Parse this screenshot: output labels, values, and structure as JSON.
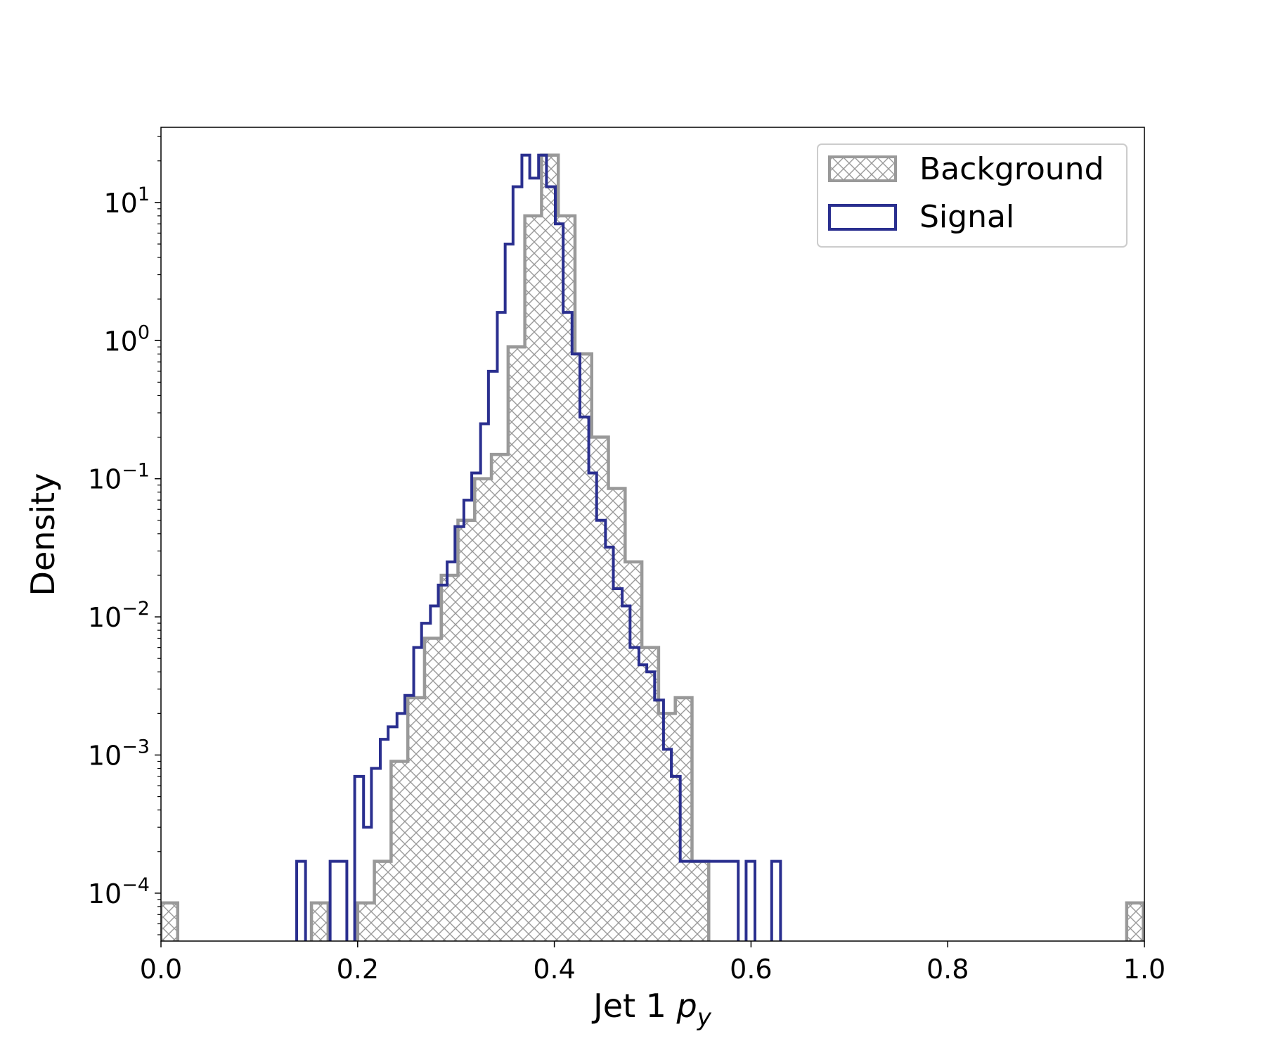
{
  "chart_data": {
    "type": "histogram",
    "xlabel": "Jet 1 ",
    "xlabel_symbol": "p",
    "xlabel_subscript": "y",
    "ylabel": "Density",
    "xlim": [
      0.0,
      1.0
    ],
    "ylim": [
      4.5e-05,
      35
    ],
    "yscale": "log",
    "grid": false,
    "legend_position": "top-right",
    "xticks": [
      {
        "value": 0.0,
        "label": "0.0"
      },
      {
        "value": 0.2,
        "label": "0.2"
      },
      {
        "value": 0.4,
        "label": "0.4"
      },
      {
        "value": 0.6,
        "label": "0.6"
      },
      {
        "value": 0.8,
        "label": "0.8"
      },
      {
        "value": 1.0,
        "label": "1.0"
      }
    ],
    "yticks": [
      {
        "value": 0.0001,
        "base": "10",
        "exp": "−4"
      },
      {
        "value": 0.001,
        "base": "10",
        "exp": "−3"
      },
      {
        "value": 0.01,
        "base": "10",
        "exp": "−2"
      },
      {
        "value": 0.1,
        "base": "10",
        "exp": "−1"
      },
      {
        "value": 1,
        "base": "10",
        "exp": "0"
      },
      {
        "value": 10,
        "base": "10",
        "exp": "1"
      }
    ],
    "bin_width": 0.017,
    "series": [
      {
        "name": "Background",
        "style": "hatched",
        "color": "#999999",
        "x_start": [
          0.0,
          0.153,
          0.2,
          0.217,
          0.234,
          0.251,
          0.268,
          0.285,
          0.302,
          0.319,
          0.336,
          0.353,
          0.37,
          0.387,
          0.404,
          0.421,
          0.438,
          0.455,
          0.472,
          0.489,
          0.506,
          0.523,
          0.54,
          0.982
        ],
        "values": [
          8.5e-05,
          8.5e-05,
          8.5e-05,
          0.00017,
          0.0009,
          0.0026,
          0.007,
          0.02,
          0.05,
          0.1,
          0.15,
          0.9,
          8.0,
          22,
          8.0,
          0.8,
          0.2,
          0.085,
          0.025,
          0.006,
          0.002,
          0.0026,
          0.00017,
          8.5e-05
        ]
      },
      {
        "name": "Signal",
        "style": "step",
        "color": "#2a2f8f",
        "x_start": [
          0.138,
          0.172,
          0.197,
          0.206,
          0.214,
          0.223,
          0.231,
          0.24,
          0.248,
          0.257,
          0.265,
          0.274,
          0.282,
          0.291,
          0.299,
          0.308,
          0.316,
          0.325,
          0.333,
          0.342,
          0.35,
          0.358,
          0.367,
          0.375,
          0.384,
          0.392,
          0.401,
          0.409,
          0.418,
          0.426,
          0.435,
          0.443,
          0.452,
          0.46,
          0.469,
          0.477,
          0.486,
          0.494,
          0.502,
          0.511,
          0.519,
          0.528,
          0.536,
          0.545,
          0.553,
          0.562,
          0.57,
          0.579,
          0.595,
          0.621
        ],
        "x_end": [
          0.147,
          0.189,
          0.206,
          0.214,
          0.223,
          0.231,
          0.24,
          0.248,
          0.257,
          0.265,
          0.274,
          0.282,
          0.291,
          0.299,
          0.308,
          0.316,
          0.325,
          0.333,
          0.342,
          0.35,
          0.358,
          0.367,
          0.375,
          0.384,
          0.392,
          0.401,
          0.409,
          0.418,
          0.426,
          0.435,
          0.443,
          0.452,
          0.46,
          0.469,
          0.477,
          0.486,
          0.494,
          0.502,
          0.511,
          0.519,
          0.528,
          0.536,
          0.545,
          0.553,
          0.562,
          0.57,
          0.579,
          0.587,
          0.604,
          0.63
        ],
        "values": [
          0.00017,
          0.00017,
          0.0007,
          0.0003,
          0.0008,
          0.0013,
          0.0016,
          0.002,
          0.0027,
          0.006,
          0.009,
          0.012,
          0.017,
          0.025,
          0.045,
          0.07,
          0.11,
          0.25,
          0.6,
          1.6,
          5.0,
          13,
          22,
          15,
          22,
          13,
          7.0,
          1.6,
          0.8,
          0.28,
          0.11,
          0.05,
          0.032,
          0.016,
          0.012,
          0.006,
          0.0045,
          0.004,
          0.0025,
          0.0011,
          0.0007,
          0.00017,
          0.00017,
          0.00017,
          0.00017,
          0.00017,
          0.00017,
          0.00017,
          0.00017,
          0.00017
        ]
      }
    ]
  }
}
